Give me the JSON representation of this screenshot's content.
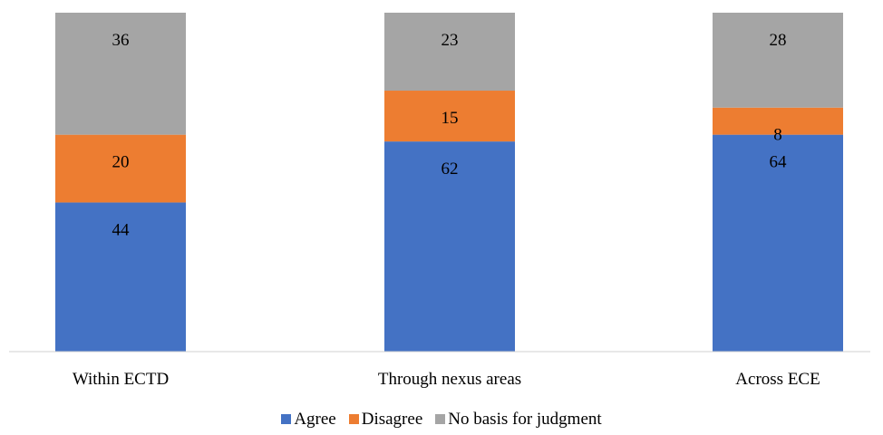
{
  "chart_data": {
    "type": "bar",
    "stacked": true,
    "categories": [
      "Within ECTD",
      "Through nexus areas",
      "Across ECE"
    ],
    "series": [
      {
        "name": "Agree",
        "color": "#4472C4",
        "values": [
          44,
          62,
          64
        ]
      },
      {
        "name": "Disagree",
        "color": "#ED7D31",
        "values": [
          20,
          15,
          8
        ]
      },
      {
        "name": "No basis for judgment",
        "color": "#A5A5A5",
        "values": [
          36,
          23,
          28
        ]
      }
    ],
    "ylim": [
      0,
      100
    ],
    "grid": false,
    "legend_position": "bottom"
  }
}
